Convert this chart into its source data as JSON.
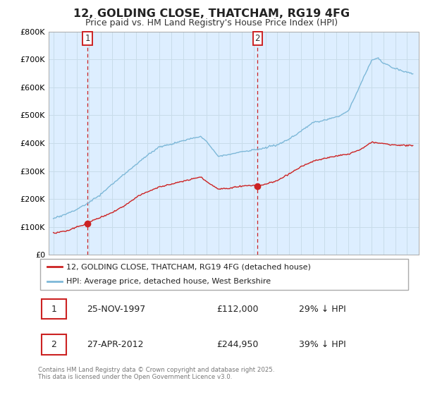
{
  "title": "12, GOLDING CLOSE, THATCHAM, RG19 4FG",
  "subtitle": "Price paid vs. HM Land Registry's House Price Index (HPI)",
  "ylim": [
    0,
    800000
  ],
  "yticks": [
    0,
    100000,
    200000,
    300000,
    400000,
    500000,
    600000,
    700000,
    800000
  ],
  "ytick_labels": [
    "£0",
    "£100K",
    "£200K",
    "£300K",
    "£400K",
    "£500K",
    "£600K",
    "£700K",
    "£800K"
  ],
  "hpi_color": "#7db8d8",
  "price_color": "#cc2222",
  "vline_color": "#cc2222",
  "bg_color": "#ddeeff",
  "purchase1_date_num": 1997.9,
  "purchase1_price": 112000,
  "purchase1_label": "1",
  "purchase2_date_num": 2012.32,
  "purchase2_price": 244950,
  "purchase2_label": "2",
  "legend_line1": "12, GOLDING CLOSE, THATCHAM, RG19 4FG (detached house)",
  "legend_line2": "HPI: Average price, detached house, West Berkshire",
  "table_row1": [
    "1",
    "25-NOV-1997",
    "£112,000",
    "29% ↓ HPI"
  ],
  "table_row2": [
    "2",
    "27-APR-2012",
    "£244,950",
    "39% ↓ HPI"
  ],
  "footnote": "Contains HM Land Registry data © Crown copyright and database right 2025.\nThis data is licensed under the Open Government Licence v3.0.",
  "grid_color": "#c8dcea"
}
